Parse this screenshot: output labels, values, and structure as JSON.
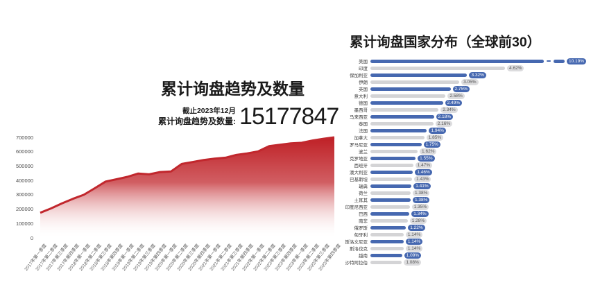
{
  "left_chart": {
    "title": "累计询盘趋势及数量",
    "asof_label": "截止2023年12月",
    "total_label": "累计询盘趋势及数量:",
    "total_value": "15177847"
  },
  "right_chart": {
    "title": "累计询盘国家分布（全球前30）"
  },
  "colors": {
    "area_line": "#c1272d",
    "area_fill_top": "#bf2026",
    "area_fill_bottom": "#ffffff",
    "bar_blue": "#4668b0",
    "bar_gray": "#d4d4d6",
    "pill_blue_bg": "#4668b0",
    "pill_blue_text": "#ffffff",
    "pill_gray_bg": "#dcdcde",
    "pill_gray_text": "#555555",
    "axis_text": "#4a4a4a"
  },
  "chart_data": [
    {
      "type": "area",
      "title": "累计询盘趋势及数量",
      "xlabel": "",
      "ylabel": "",
      "ylim": [
        0,
        700000
      ],
      "yticks": [
        0,
        100000,
        200000,
        300000,
        400000,
        500000,
        600000,
        700000
      ],
      "grid": false,
      "legend": false,
      "x": [
        "2017年第一季度",
        "2017年第二季度",
        "2017年第三季度",
        "2017年第四季度",
        "2018年第一季度",
        "2018年第二季度",
        "2018年第三季度",
        "2018年第四季度",
        "2019年第一季度",
        "2019年第二季度",
        "2019年第三季度",
        "2019年第四季度",
        "2020年第一季度",
        "2020年第二季度",
        "2020年第三季度",
        "2020年第四季度",
        "2021年第一季度",
        "2021年第二季度",
        "2021年第三季度",
        "2021年第四季度",
        "2022年第一季度",
        "2022年第二季度",
        "2022年第三季度",
        "2022年第四季度",
        "2023年第一季度",
        "2023年第二季度",
        "2023年第三季度",
        "2023年第四季度"
      ],
      "values": [
        175000,
        205000,
        240000,
        272000,
        300000,
        345000,
        392000,
        408000,
        425000,
        448000,
        442000,
        458000,
        462000,
        515000,
        528000,
        542000,
        552000,
        558000,
        578000,
        588000,
        602000,
        638000,
        648000,
        658000,
        662000,
        678000,
        690000,
        700000
      ]
    },
    {
      "type": "bar",
      "orientation": "horizontal",
      "title": "累计询盘国家分布（全球前30）",
      "unit": "%",
      "legend": false,
      "axis_break_on_first_bar": true,
      "categories": [
        "美国",
        "印度",
        "保加利亚",
        "伊朗",
        "英国",
        "意大利",
        "德国",
        "墨西哥",
        "马来西亚",
        "泰国",
        "法国",
        "加拿大",
        "罗马尼亚",
        "波兰",
        "克罗地亚",
        "西班牙",
        "澳大利亚",
        "巴基斯坦",
        "瑞典",
        "荷兰",
        "土耳其",
        "印度尼西亚",
        "巴西",
        "南非",
        "俄罗斯",
        "匈牙利",
        "斯洛文尼亚",
        "斯洛伐克",
        "越南",
        "沙特阿拉伯"
      ],
      "values": [
        10.19,
        4.62,
        3.32,
        3.05,
        2.75,
        2.58,
        2.49,
        2.34,
        2.18,
        2.16,
        1.94,
        1.85,
        1.75,
        1.62,
        1.55,
        1.47,
        1.46,
        1.43,
        1.41,
        1.38,
        1.38,
        1.35,
        1.34,
        1.28,
        1.22,
        1.14,
        1.14,
        1.14,
        1.09,
        1.08
      ],
      "labels": [
        "10.19%",
        "4.62%",
        "3.32%",
        "3.05%",
        "2.75%",
        "2.58%",
        "2.49%",
        "2.34%",
        "2.18%",
        "2.16%",
        "1.94%",
        "1.85%",
        "1.75%",
        "1.62%",
        "1.55%",
        "1.47%",
        "1.46%",
        "1.43%",
        "1.41%",
        "1.38%",
        "1.38%",
        "1.35%",
        "1.34%",
        "1.28%",
        "1.22%",
        "1.14%",
        "1.14%",
        "1.14%",
        "1.09%",
        "1.08%"
      ]
    }
  ]
}
